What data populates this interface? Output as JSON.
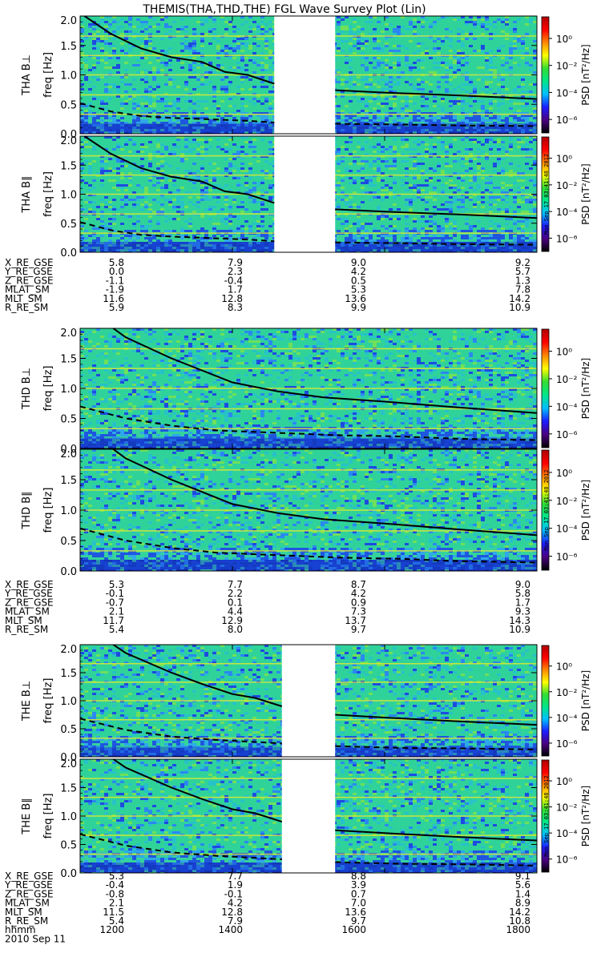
{
  "title": "THEMIS(THA,THD,THE) FGL Wave Survey Plot (Lin)",
  "colorbar": {
    "label": "PSD [nT²/Hz]",
    "tick_labels": [
      "10⁰",
      "10⁻²",
      "10⁻⁴",
      "10⁻⁶"
    ],
    "tick_exponents": [
      0,
      -2,
      -4,
      -6
    ],
    "log_range": [
      -7,
      1.6
    ],
    "colormap": [
      "#000000",
      "#4b0082",
      "#1c1cff",
      "#00bfff",
      "#00e68a",
      "#33dd33",
      "#ffff00",
      "#ff8800",
      "#ff0000",
      "#b00000"
    ]
  },
  "creation_stamp": "Mon Sep 17 03:41:48 2012",
  "colors": {
    "spectrogram_base": "#2fd39a",
    "low_freq_band": "#1a50d8",
    "harmonic_line": "#e2ea2c",
    "gap": "#ffffff"
  },
  "x_axis": {
    "row_label": "hhmm",
    "date": "2010 Sep 11",
    "ticks": [
      "1200",
      "1400",
      "1600",
      "1800"
    ],
    "tick_values": [
      1200,
      1400,
      1600,
      1800
    ]
  },
  "chart_data": [
    {
      "type": "heatmap",
      "name": "THA B⊥",
      "probe": "THA",
      "component": "B⊥",
      "ylabel": "THA B⊥",
      "ylabel2": "freq [Hz]",
      "ylim": [
        0,
        2
      ],
      "yticks": [
        "0.0",
        "0.5",
        "1.0",
        "1.5",
        "2.0"
      ],
      "ytick_values": [
        0,
        0.5,
        1.0,
        1.5,
        2.0
      ],
      "xlim": [
        1200,
        1800
      ],
      "data_gaps": [
        [
          1455,
          1535
        ]
      ],
      "harmonic_freqs": [
        0.33,
        0.66,
        1.0,
        1.33,
        1.66
      ],
      "solid_line": {
        "x": [
          1200,
          1240,
          1280,
          1320,
          1360,
          1390,
          1420,
          1455,
          1535,
          1600,
          1700,
          1800
        ],
        "y": [
          2.05,
          1.7,
          1.45,
          1.3,
          1.22,
          1.05,
          1.0,
          0.85,
          0.74,
          0.7,
          0.65,
          0.59
        ]
      },
      "dashed_line": {
        "x": [
          1200,
          1240,
          1280,
          1320,
          1360,
          1420,
          1455,
          1535,
          1600,
          1700,
          1800
        ],
        "y": [
          0.52,
          0.38,
          0.3,
          0.27,
          0.25,
          0.22,
          0.19,
          0.17,
          0.16,
          0.14,
          0.13
        ]
      }
    },
    {
      "type": "heatmap",
      "name": "THA B∥",
      "probe": "THA",
      "component": "B∥",
      "ylabel": "THA B∥",
      "ylabel2": "freq [Hz]",
      "ylim": [
        0,
        2
      ],
      "yticks": [
        "0.0",
        "0.5",
        "1.0",
        "1.5",
        "2.0"
      ],
      "ytick_values": [
        0,
        0.5,
        1.0,
        1.5,
        2.0
      ],
      "xlim": [
        1200,
        1800
      ],
      "data_gaps": [
        [
          1455,
          1535
        ]
      ],
      "harmonic_freqs": [
        0.33,
        0.66,
        1.0,
        1.33,
        1.66
      ],
      "solid_line": {
        "x": [
          1200,
          1240,
          1280,
          1320,
          1360,
          1390,
          1420,
          1455,
          1535,
          1600,
          1700,
          1800
        ],
        "y": [
          2.05,
          1.7,
          1.45,
          1.3,
          1.22,
          1.05,
          1.0,
          0.85,
          0.74,
          0.7,
          0.65,
          0.59
        ]
      },
      "dashed_line": {
        "x": [
          1200,
          1240,
          1280,
          1320,
          1360,
          1420,
          1455,
          1535,
          1600,
          1700,
          1800
        ],
        "y": [
          0.52,
          0.38,
          0.3,
          0.27,
          0.25,
          0.22,
          0.19,
          0.17,
          0.16,
          0.14,
          0.13
        ]
      }
    },
    {
      "type": "heatmap",
      "name": "THD B⊥",
      "probe": "THD",
      "component": "B⊥",
      "ylabel": "THD B⊥",
      "ylabel2": "freq [Hz]",
      "ylim": [
        0,
        2
      ],
      "yticks": [
        "0.0",
        "0.5",
        "1.0",
        "1.5",
        "2.0"
      ],
      "ytick_values": [
        0,
        0.5,
        1.0,
        1.5,
        2.0
      ],
      "xlim": [
        1200,
        1800
      ],
      "data_gaps": [],
      "harmonic_freqs": [
        0.33,
        0.66,
        1.0,
        1.33,
        1.66
      ],
      "solid_line": {
        "x": [
          1200,
          1260,
          1320,
          1360,
          1400,
          1460,
          1520,
          1600,
          1700,
          1800
        ],
        "y": [
          2.4,
          1.85,
          1.5,
          1.3,
          1.1,
          0.95,
          0.85,
          0.78,
          0.68,
          0.59
        ]
      },
      "dashed_line": {
        "x": [
          1200,
          1260,
          1320,
          1380,
          1460,
          1540,
          1620,
          1700,
          1800
        ],
        "y": [
          0.7,
          0.5,
          0.38,
          0.3,
          0.26,
          0.22,
          0.2,
          0.16,
          0.14
        ]
      }
    },
    {
      "type": "heatmap",
      "name": "THD B∥",
      "probe": "THD",
      "component": "B∥",
      "ylabel": "THD B∥",
      "ylabel2": "freq [Hz]",
      "ylim": [
        0,
        2
      ],
      "yticks": [
        "0.0",
        "0.5",
        "1.0",
        "1.5",
        "2.0"
      ],
      "ytick_values": [
        0,
        0.5,
        1.0,
        1.5,
        2.0
      ],
      "xlim": [
        1200,
        1800
      ],
      "data_gaps": [],
      "harmonic_freqs": [
        0.33,
        0.66,
        1.0,
        1.33,
        1.66
      ],
      "solid_line": {
        "x": [
          1200,
          1260,
          1320,
          1360,
          1400,
          1460,
          1520,
          1600,
          1700,
          1800
        ],
        "y": [
          2.4,
          1.85,
          1.5,
          1.3,
          1.1,
          0.95,
          0.85,
          0.78,
          0.68,
          0.59
        ]
      },
      "dashed_line": {
        "x": [
          1200,
          1260,
          1320,
          1380,
          1460,
          1540,
          1620,
          1700,
          1800
        ],
        "y": [
          0.7,
          0.5,
          0.38,
          0.3,
          0.26,
          0.22,
          0.2,
          0.16,
          0.14
        ]
      }
    },
    {
      "type": "heatmap",
      "name": "THE B⊥",
      "probe": "THE",
      "component": "B⊥",
      "ylabel": "THE B⊥",
      "ylabel2": "freq [Hz]",
      "ylim": [
        0,
        2
      ],
      "yticks": [
        "0.0",
        "0.5",
        "1.0",
        "1.5",
        "2.0"
      ],
      "ytick_values": [
        0,
        0.5,
        1.0,
        1.5,
        2.0
      ],
      "xlim": [
        1200,
        1800
      ],
      "data_gaps": [
        [
          1465,
          1535
        ]
      ],
      "harmonic_freqs": [
        0.33,
        0.66,
        1.0,
        1.33,
        1.66
      ],
      "solid_line": {
        "x": [
          1200,
          1260,
          1320,
          1360,
          1400,
          1430,
          1465,
          1535,
          1600,
          1700,
          1800
        ],
        "y": [
          2.4,
          1.85,
          1.5,
          1.3,
          1.12,
          1.05,
          0.9,
          0.75,
          0.7,
          0.63,
          0.57
        ]
      },
      "dashed_line": {
        "x": [
          1200,
          1260,
          1320,
          1380,
          1465,
          1535,
          1620,
          1700,
          1800
        ],
        "y": [
          0.68,
          0.48,
          0.36,
          0.3,
          0.24,
          0.19,
          0.16,
          0.15,
          0.13
        ]
      }
    },
    {
      "type": "heatmap",
      "name": "THE B∥",
      "probe": "THE",
      "component": "B∥",
      "ylabel": "THE B∥",
      "ylabel2": "freq [Hz]",
      "ylim": [
        0,
        2
      ],
      "yticks": [
        "0.0",
        "0.5",
        "1.0",
        "1.5",
        "2.0"
      ],
      "ytick_values": [
        0,
        0.5,
        1.0,
        1.5,
        2.0
      ],
      "xlim": [
        1200,
        1800
      ],
      "data_gaps": [
        [
          1465,
          1535
        ]
      ],
      "harmonic_freqs": [
        0.33,
        0.66,
        1.0,
        1.33,
        1.66
      ],
      "solid_line": {
        "x": [
          1200,
          1260,
          1320,
          1360,
          1400,
          1430,
          1465,
          1535,
          1600,
          1700,
          1800
        ],
        "y": [
          2.4,
          1.85,
          1.5,
          1.3,
          1.12,
          1.05,
          0.9,
          0.75,
          0.7,
          0.63,
          0.57
        ]
      },
      "dashed_line": {
        "x": [
          1200,
          1260,
          1320,
          1380,
          1465,
          1535,
          1620,
          1700,
          1800
        ],
        "y": [
          0.68,
          0.48,
          0.36,
          0.3,
          0.24,
          0.19,
          0.16,
          0.15,
          0.13
        ]
      }
    }
  ],
  "ephemeris_tables": [
    {
      "probe": "THA",
      "rows": [
        {
          "label": "X_RE_GSE",
          "values": [
            "5.8",
            "7.9",
            "9.0",
            "9.2"
          ]
        },
        {
          "label": "Y_RE_GSE",
          "values": [
            "0.0",
            "2.3",
            "4.2",
            "5.7"
          ]
        },
        {
          "label": "Z_RE_GSE",
          "values": [
            "-1.1",
            "-0.4",
            "0.5",
            "1.3"
          ]
        },
        {
          "label": "MLAT_SM",
          "values": [
            "-1.9",
            "1.7",
            "5.3",
            "7.8"
          ]
        },
        {
          "label": "MLT_SM",
          "values": [
            "11.6",
            "12.8",
            "13.6",
            "14.2"
          ]
        },
        {
          "label": "R_RE_SM",
          "values": [
            "5.9",
            "8.3",
            "9.9",
            "10.9"
          ]
        }
      ]
    },
    {
      "probe": "THD",
      "rows": [
        {
          "label": "X_RE_GSE",
          "values": [
            "5.3",
            "7.7",
            "8.7",
            "9.0"
          ]
        },
        {
          "label": "Y_RE_GSE",
          "values": [
            "-0.1",
            "2.2",
            "4.2",
            "5.8"
          ]
        },
        {
          "label": "Z_RE_GSE",
          "values": [
            "-0.7",
            "0.1",
            "0.9",
            "1.7"
          ]
        },
        {
          "label": "MLAT_SM",
          "values": [
            "2.1",
            "4.4",
            "7.3",
            "9.3"
          ]
        },
        {
          "label": "MLT_SM",
          "values": [
            "11.7",
            "12.9",
            "13.7",
            "14.3"
          ]
        },
        {
          "label": "R_RE_SM",
          "values": [
            "5.4",
            "8.0",
            "9.7",
            "10.9"
          ]
        }
      ]
    },
    {
      "probe": "THE",
      "rows": [
        {
          "label": "X_RE_GSE",
          "values": [
            "5.3",
            "7.7",
            "8.8",
            "9.1"
          ]
        },
        {
          "label": "Y_RE_GSE",
          "values": [
            "-0.4",
            "1.9",
            "3.9",
            "5.6"
          ]
        },
        {
          "label": "Z_RE_GSE",
          "values": [
            "-0.8",
            "-0.1",
            "0.7",
            "1.4"
          ]
        },
        {
          "label": "MLAT_SM",
          "values": [
            "2.1",
            "4.2",
            "7.0",
            "8.9"
          ]
        },
        {
          "label": "MLT_SM",
          "values": [
            "11.5",
            "12.8",
            "13.6",
            "14.2"
          ]
        },
        {
          "label": "R_RE_SM",
          "values": [
            "5.4",
            "7.9",
            "9.7",
            "10.8"
          ]
        }
      ]
    }
  ]
}
